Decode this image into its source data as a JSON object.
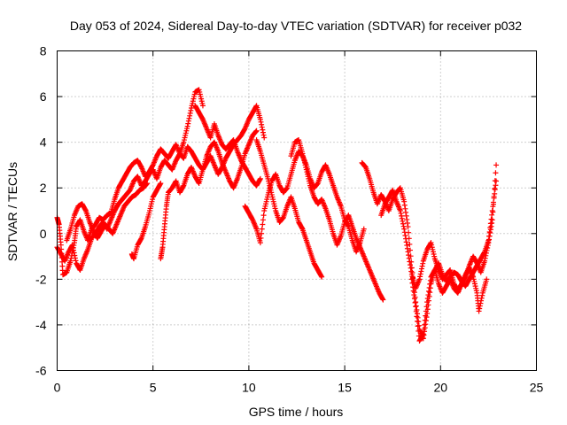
{
  "chart_data": {
    "type": "scatter",
    "title": "Day 053 of 2024, Sidereal Day-to-day VTEC variation (SDTVAR) for receiver p032",
    "xlabel": "GPS time / hours",
    "ylabel": "SDTVAR / TECUs",
    "xlim": [
      0,
      25
    ],
    "ylim": [
      -6,
      8
    ],
    "xticks": [
      0,
      5,
      10,
      15,
      20,
      25
    ],
    "yticks": [
      -6,
      -4,
      -2,
      0,
      2,
      4,
      6,
      8
    ],
    "grid": true,
    "marker": "+",
    "series": [
      {
        "name": "SDTVAR",
        "color": "#ff0000",
        "segments": [
          {
            "x": [
              0.0,
              0.1,
              0.2,
              0.3,
              0.5,
              0.7,
              0.9,
              1.0,
              1.2,
              1.4,
              1.6,
              1.8,
              2.0,
              2.2,
              2.4,
              2.6,
              2.8,
              3.0,
              3.2,
              3.4,
              3.6,
              3.8,
              4.0,
              4.2,
              4.4,
              4.6,
              4.8,
              5.0,
              5.2,
              5.4,
              5.6,
              5.8,
              6.0,
              6.2,
              6.4,
              6.6,
              6.8,
              7.0,
              7.2,
              7.4,
              7.6
            ],
            "y": [
              0.7,
              0.4,
              -0.5,
              -1.8,
              -1.7,
              -1.2,
              -0.4,
              0.3,
              0.6,
              0.1,
              -0.3,
              0.2,
              0.4,
              0.7,
              0.6,
              0.8,
              0.9,
              1.5,
              2.0,
              2.3,
              2.6,
              2.9,
              3.1,
              3.2,
              2.9,
              2.5,
              2.7,
              3.0,
              3.4,
              3.7,
              3.5,
              3.3,
              3.6,
              3.9,
              3.5,
              4.0,
              4.7,
              5.5,
              6.2,
              6.3,
              5.6
            ]
          },
          {
            "x": [
              0.0,
              0.2,
              0.4,
              0.6,
              0.8,
              1.0,
              1.2,
              1.4,
              1.6,
              1.8,
              2.0,
              2.2,
              2.4,
              2.6,
              2.8,
              3.0,
              3.2,
              3.4,
              3.6,
              3.8,
              4.0,
              4.2,
              4.4,
              4.6,
              4.8,
              5.0,
              5.2,
              5.4,
              5.6,
              5.8,
              6.0,
              6.2,
              6.4,
              6.6,
              6.8,
              7.0,
              7.2,
              7.4,
              7.6,
              7.8,
              8.0,
              8.2,
              8.4,
              8.6,
              8.8,
              9.0,
              9.2,
              9.4,
              9.6,
              9.8,
              10.0,
              10.2,
              10.4,
              10.6,
              10.8
            ],
            "y": [
              -0.6,
              -0.9,
              -1.2,
              -0.8,
              -0.5,
              -1.3,
              -1.6,
              -1.1,
              -0.7,
              -0.2,
              0.0,
              0.3,
              0.5,
              0.2,
              0.6,
              1.0,
              1.3,
              1.5,
              1.7,
              1.9,
              2.3,
              2.5,
              2.1,
              2.3,
              2.6,
              2.8,
              2.4,
              2.9,
              3.2,
              3.0,
              2.8,
              3.2,
              3.5,
              3.3,
              3.8,
              3.6,
              3.3,
              3.0,
              2.8,
              3.1,
              3.4,
              3.0,
              2.6,
              2.9,
              3.3,
              3.6,
              3.9,
              4.1,
              4.3,
              4.6,
              5.0,
              5.3,
              5.6,
              5.0,
              4.2
            ]
          },
          {
            "x": [
              0.5,
              0.7,
              0.9,
              1.1,
              1.3,
              1.5,
              1.7,
              1.9,
              2.1,
              2.3,
              2.5,
              2.7,
              2.9,
              3.1,
              3.3,
              3.5,
              3.7,
              3.9,
              4.1,
              4.3,
              4.5,
              4.7
            ],
            "y": [
              -0.3,
              0.2,
              0.8,
              1.2,
              1.3,
              1.0,
              0.5,
              0.1,
              -0.2,
              0.1,
              0.4,
              0.2,
              0.0,
              0.4,
              0.8,
              1.2,
              1.4,
              1.6,
              1.7,
              1.9,
              2.0,
              2.2
            ]
          },
          {
            "x": [
              3.9,
              4.0,
              4.2,
              4.4,
              4.6,
              4.8,
              5.0,
              5.2,
              5.4
            ],
            "y": [
              -0.9,
              -1.1,
              -0.5,
              -0.2,
              0.3,
              0.9,
              1.6,
              1.9,
              2.2
            ]
          },
          {
            "x": [
              5.4,
              5.5,
              5.6,
              5.7,
              5.8,
              6.0,
              6.2,
              6.4,
              6.6,
              6.8,
              7.0,
              7.2,
              7.4,
              7.6,
              7.8,
              8.0,
              8.2,
              8.4,
              8.6,
              8.8,
              9.0,
              9.2,
              9.4,
              9.6,
              9.8,
              10.0,
              10.2,
              10.4
            ],
            "y": [
              -1.1,
              -0.6,
              0.3,
              1.2,
              1.8,
              2.0,
              2.3,
              1.8,
              2.1,
              2.6,
              2.9,
              2.5,
              2.2,
              2.8,
              3.4,
              3.8,
              4.0,
              3.6,
              3.1,
              2.7,
              2.3,
              2.0,
              2.4,
              2.9,
              3.5,
              3.9,
              4.3,
              4.5
            ]
          },
          {
            "x": [
              7.2,
              7.4,
              7.6,
              7.8,
              8.0,
              8.2,
              8.4,
              8.6,
              8.8,
              9.0,
              9.2,
              9.4,
              9.6,
              9.8,
              10.0,
              10.2,
              10.4,
              10.6
            ],
            "y": [
              5.6,
              5.3,
              5.0,
              4.6,
              4.2,
              4.8,
              4.3,
              3.9,
              3.7,
              3.9,
              4.1,
              3.6,
              3.2,
              2.9,
              2.6,
              2.3,
              2.1,
              2.4
            ]
          },
          {
            "x": [
              9.8,
              10.0,
              10.2,
              10.4,
              10.6,
              10.8,
              11.0,
              11.2,
              11.4,
              11.6,
              11.8,
              12.0,
              12.2,
              12.4,
              12.6,
              12.8,
              13.0,
              13.2,
              13.4,
              13.6,
              13.8,
              14.0,
              14.2,
              14.4,
              14.6,
              14.8,
              15.0,
              15.2,
              15.4,
              15.6,
              15.8,
              16.0
            ],
            "y": [
              1.2,
              0.9,
              0.6,
              0.2,
              -0.4,
              1.0,
              1.7,
              2.3,
              2.6,
              2.1,
              1.8,
              2.0,
              2.6,
              3.2,
              3.6,
              3.4,
              3.0,
              2.4,
              2.0,
              2.2,
              2.7,
              3.0,
              2.6,
              2.1,
              1.6,
              1.2,
              0.6,
              0.3,
              -0.3,
              -0.8,
              -0.4,
              0.2
            ]
          },
          {
            "x": [
              10.4,
              10.6,
              10.8,
              11.0,
              11.2,
              11.4,
              11.6,
              11.8,
              12.0,
              12.2,
              12.4,
              12.6,
              12.8,
              13.0,
              13.2,
              13.4,
              13.6,
              13.8
            ],
            "y": [
              4.1,
              3.6,
              3.0,
              2.4,
              1.7,
              1.0,
              0.5,
              0.7,
              1.2,
              1.6,
              1.1,
              0.5,
              0.2,
              -0.3,
              -0.8,
              -1.3,
              -1.6,
              -1.9
            ]
          },
          {
            "x": [
              12.2,
              12.4,
              12.6,
              12.8,
              13.0,
              13.2,
              13.4,
              13.6,
              13.8,
              14.0,
              14.2,
              14.4,
              14.6,
              14.8,
              15.0,
              15.2,
              15.4,
              15.6,
              15.8,
              16.0,
              16.2,
              16.4,
              16.6,
              16.8,
              17.0
            ],
            "y": [
              3.4,
              4.0,
              4.1,
              3.5,
              2.8,
              2.1,
              1.6,
              1.3,
              1.5,
              1.1,
              0.6,
              0.0,
              -0.5,
              -0.1,
              0.5,
              0.8,
              0.3,
              -0.2,
              -0.6,
              -1.0,
              -1.4,
              -1.8,
              -2.2,
              -2.6,
              -2.9
            ]
          },
          {
            "x": [
              15.9,
              16.1,
              16.3,
              16.5,
              16.7,
              16.9,
              17.1,
              17.3,
              17.5,
              17.7,
              17.9,
              18.1,
              18.3,
              18.5,
              18.7,
              18.9,
              19.1,
              19.3,
              19.5,
              19.7,
              19.9,
              20.1,
              20.3,
              20.5,
              20.7,
              20.9,
              21.1,
              21.3,
              21.5,
              21.7,
              21.9,
              22.1,
              22.3,
              22.5,
              22.7,
              22.9
            ],
            "y": [
              3.1,
              2.9,
              2.4,
              1.8,
              1.3,
              1.7,
              1.4,
              1.0,
              1.5,
              1.8,
              2.0,
              1.4,
              0.3,
              -1.5,
              -3.0,
              -4.2,
              -4.6,
              -3.5,
              -2.2,
              -1.6,
              -1.3,
              -1.8,
              -2.1,
              -1.9,
              -1.7,
              -1.8,
              -2.1,
              -2.3,
              -2.0,
              -1.7,
              -1.4,
              -1.1,
              -0.8,
              -0.3,
              1.0,
              2.3
            ]
          },
          {
            "x": [
              16.9,
              17.1,
              17.3,
              17.5,
              17.7,
              17.9,
              18.1,
              18.3,
              18.5,
              18.7,
              18.9,
              19.1,
              19.3,
              19.5,
              19.7,
              19.9,
              20.1,
              20.3,
              20.5,
              20.7,
              20.9,
              21.1,
              21.3,
              21.5,
              21.7,
              21.9,
              22.1,
              22.3,
              22.5,
              22.7,
              22.9
            ],
            "y": [
              0.8,
              1.3,
              1.6,
              1.9,
              1.4,
              1.0,
              0.2,
              -0.8,
              -1.8,
              -2.4,
              -2.0,
              -1.2,
              -0.7,
              -0.4,
              -1.1,
              -1.6,
              -2.0,
              -1.8,
              -1.6,
              -2.2,
              -2.5,
              -2.2,
              -1.9,
              -1.4,
              -1.0,
              -1.3,
              -1.7,
              -1.2,
              -0.4,
              0.6,
              3.0
            ]
          },
          {
            "x": [
              18.5,
              18.7,
              18.9,
              19.1,
              19.3,
              19.5,
              19.7,
              19.9,
              20.1,
              20.3,
              20.5,
              20.7,
              20.9,
              21.1,
              21.3,
              21.5,
              21.7,
              21.9,
              22.0,
              22.2,
              22.4
            ],
            "y": [
              -2.0,
              -3.2,
              -4.7,
              -4.4,
              -3.0,
              -1.9,
              -1.6,
              -2.2,
              -2.6,
              -2.3,
              -2.0,
              -2.4,
              -2.6,
              -2.2,
              -1.8,
              -1.5,
              -1.9,
              -2.6,
              -3.4,
              -2.6,
              -2.0
            ]
          }
        ]
      }
    ]
  }
}
